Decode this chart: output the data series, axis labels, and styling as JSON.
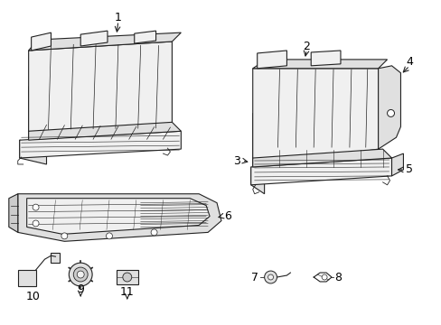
{
  "bg_color": "#ffffff",
  "fig_width": 4.89,
  "fig_height": 3.6,
  "dpi": 100,
  "line_color": "#222222",
  "line_width": 0.8,
  "fill_light": "#f0f0f0",
  "fill_mid": "#e0e0e0",
  "fill_dark": "#cccccc"
}
